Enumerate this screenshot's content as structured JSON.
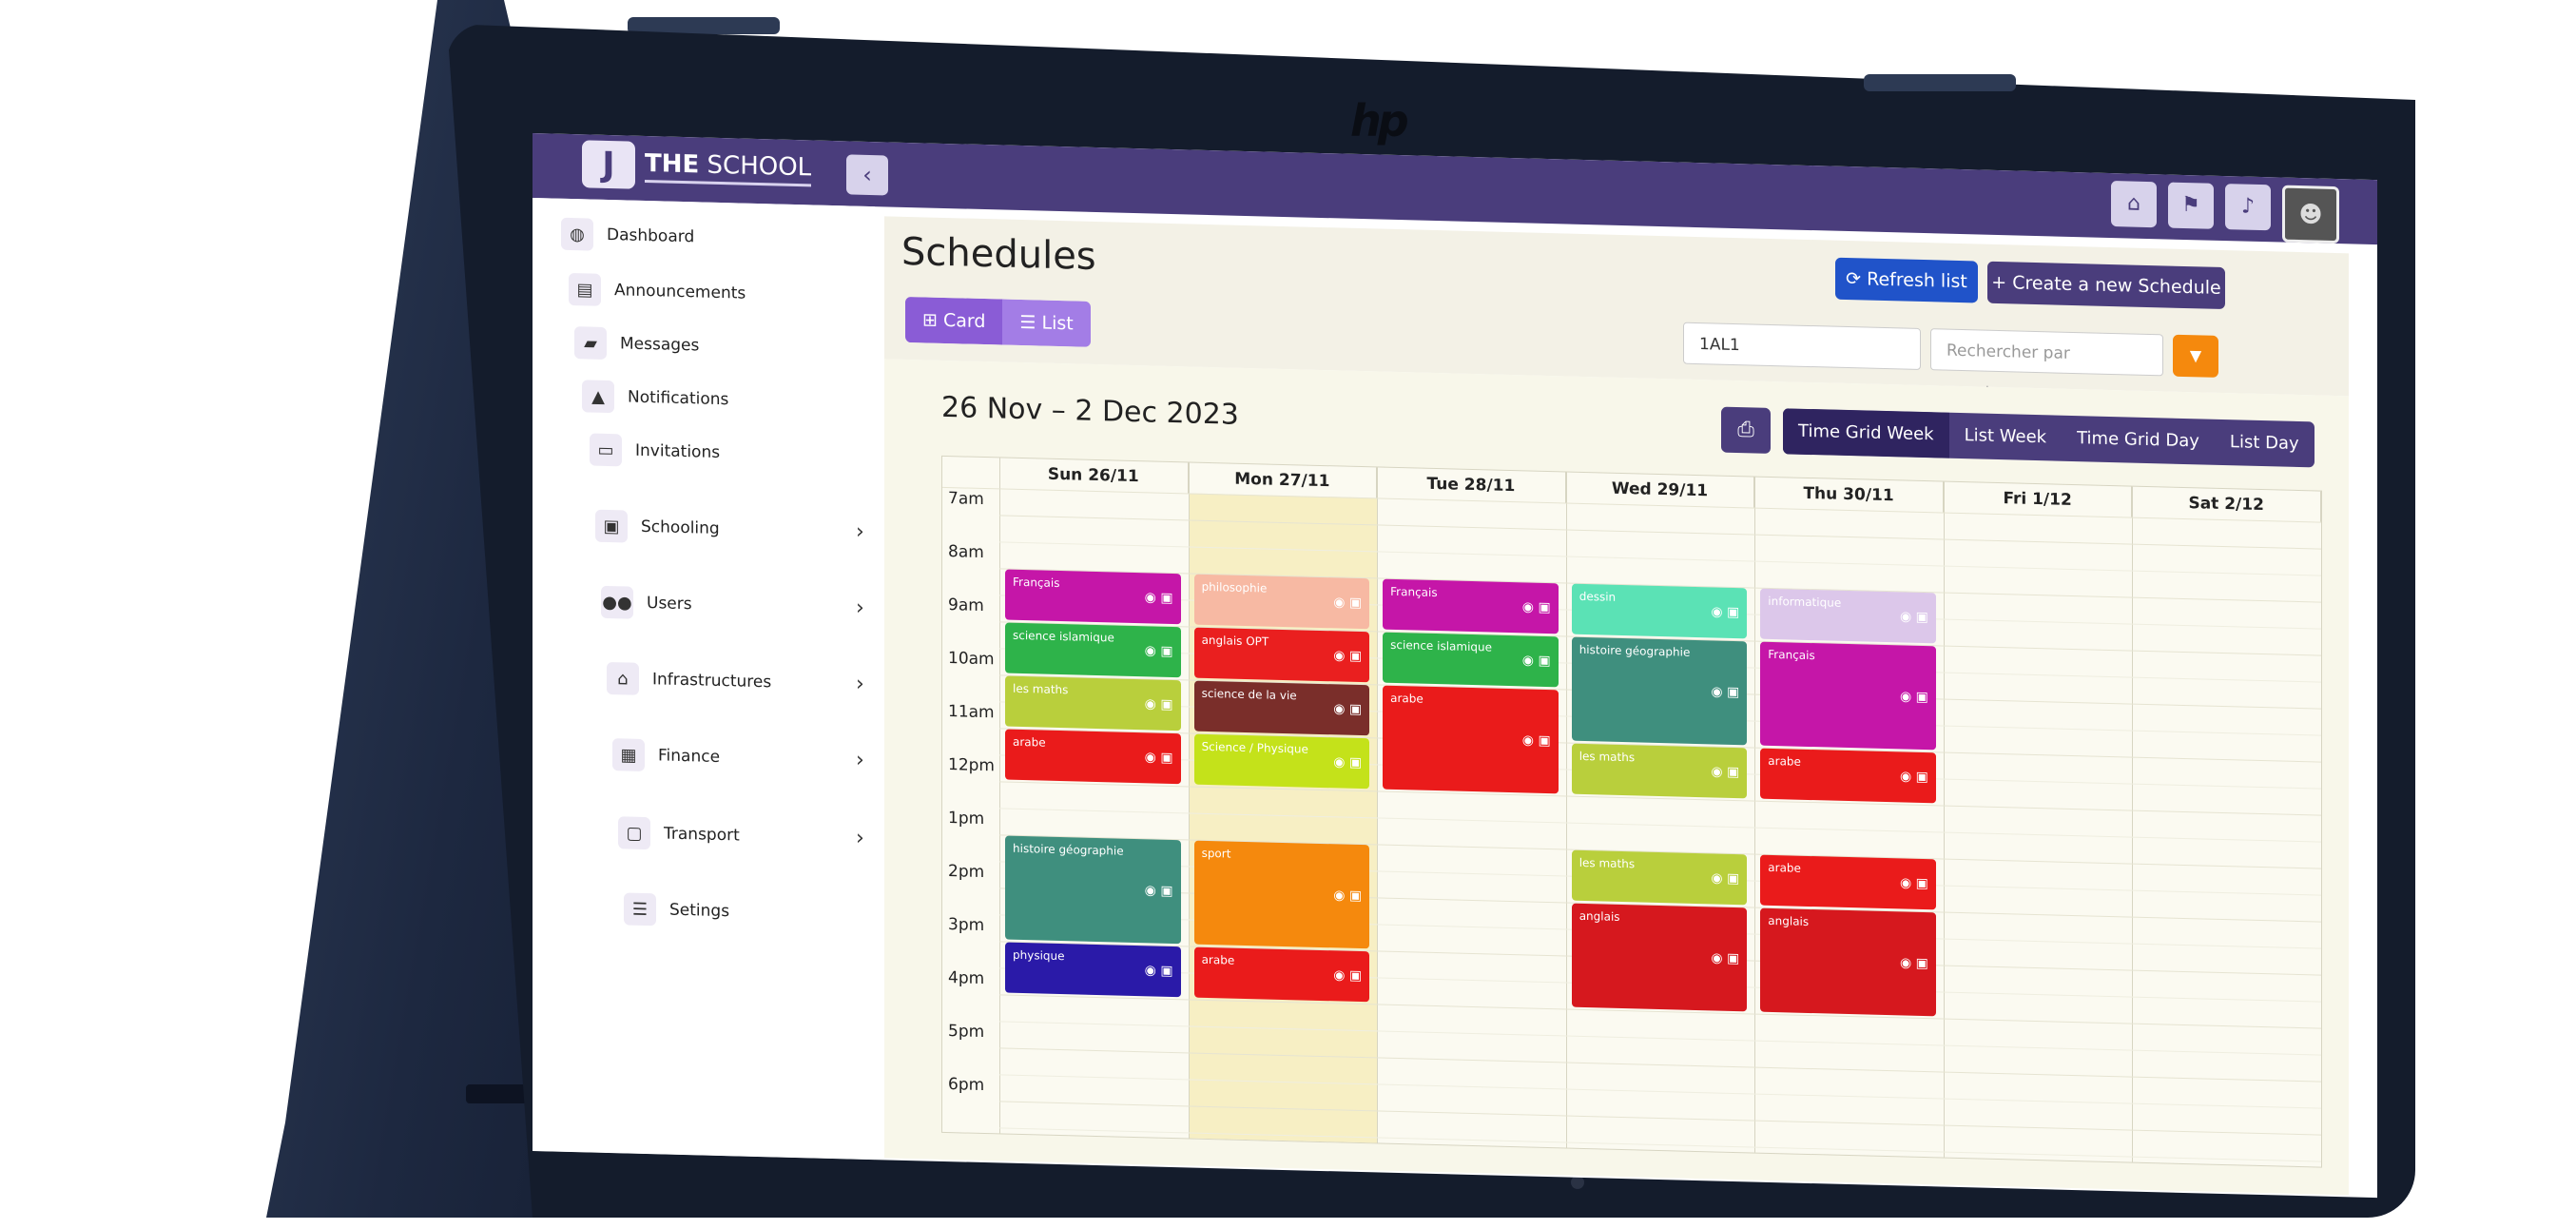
{
  "device": {
    "logo": "hp"
  },
  "app": {
    "brand_mark": "J",
    "brand_bold": "THE",
    "brand_rest": "SCHOOL",
    "collapse_icon": "‹",
    "top_icons": [
      "home-icon",
      "flag-icon",
      "bell-icon"
    ],
    "avatar": "☻"
  },
  "sidebar": {
    "items": [
      {
        "label": "Dashboard",
        "icon": "◍",
        "chev": ""
      },
      {
        "label": "Announcements",
        "icon": "▤",
        "chev": ""
      },
      {
        "label": "Messages",
        "icon": "▰",
        "chev": ""
      },
      {
        "label": "Notifications",
        "icon": "▲",
        "chev": ""
      },
      {
        "label": "Invitations",
        "icon": "▭",
        "chev": ""
      },
      {
        "label": "Schooling",
        "icon": "▣",
        "chev": "›"
      },
      {
        "label": "Users",
        "icon": "●●",
        "chev": "›"
      },
      {
        "label": "Infrastructures",
        "icon": "⌂",
        "chev": "›"
      },
      {
        "label": "Finance",
        "icon": "▦",
        "chev": "›"
      },
      {
        "label": "Transport",
        "icon": "▢",
        "chev": "›"
      },
      {
        "label": "Setings",
        "icon": "☰",
        "chev": ""
      }
    ]
  },
  "header": {
    "title": "Schedules",
    "refresh_label": "⟳ Refresh list",
    "create_label": "+ Create a new Schedule",
    "card_label": "⊞ Card",
    "list_label": "☰ List",
    "class_value": "1AL1",
    "teacher_placeholder": "Rechercher par enseignant",
    "filter_icon": "▼"
  },
  "calendar": {
    "date_range": "26 Nov – 2 Dec 2023",
    "print_icon": "⎙",
    "views": [
      "Time Grid Week",
      "List Week",
      "Time Grid Day",
      "List Day"
    ],
    "active_view": "Time Grid Week",
    "days": [
      "Sun 26/11",
      "Mon 27/11",
      "Tue 28/11",
      "Wed 29/11",
      "Thu 30/11",
      "Fri 1/12",
      "Sat 2/12"
    ],
    "today_index": 1,
    "times": [
      "7am",
      "8am",
      "9am",
      "10am",
      "11am",
      "12pm",
      "1pm",
      "2pm",
      "3pm",
      "4pm",
      "5pm",
      "6pm"
    ],
    "events": [
      {
        "day": 0,
        "start": 8.0,
        "end": 9.0,
        "title": "Français",
        "color": "#c516a8"
      },
      {
        "day": 0,
        "start": 9.0,
        "end": 10.0,
        "title": "science islamique",
        "color": "#2eb34a"
      },
      {
        "day": 0,
        "start": 10.0,
        "end": 11.0,
        "title": "les maths",
        "color": "#b9cf3c"
      },
      {
        "day": 0,
        "start": 11.0,
        "end": 12.0,
        "title": "arabe",
        "color": "#ea1b1b"
      },
      {
        "day": 0,
        "start": 13.0,
        "end": 15.0,
        "title": "histoire géographie",
        "color": "#3f8f7e"
      },
      {
        "day": 0,
        "start": 15.0,
        "end": 16.0,
        "title": "physique",
        "color": "#2a1aa8"
      },
      {
        "day": 1,
        "start": 8.0,
        "end": 9.0,
        "title": "philosophie",
        "color": "#f7b9a3"
      },
      {
        "day": 1,
        "start": 9.0,
        "end": 10.0,
        "title": "anglais OPT",
        "color": "#ea1f1f"
      },
      {
        "day": 1,
        "start": 10.0,
        "end": 11.0,
        "title": "science de la vie",
        "color": "#7a2e2a"
      },
      {
        "day": 1,
        "start": 11.0,
        "end": 12.0,
        "title": "Science / Physique",
        "color": "#c4e21a"
      },
      {
        "day": 1,
        "start": 13.0,
        "end": 15.0,
        "title": "sport",
        "color": "#f5890d"
      },
      {
        "day": 1,
        "start": 15.0,
        "end": 16.0,
        "title": "arabe",
        "color": "#ea1b1b"
      },
      {
        "day": 2,
        "start": 8.0,
        "end": 9.0,
        "title": "Français",
        "color": "#c516a8"
      },
      {
        "day": 2,
        "start": 9.0,
        "end": 10.0,
        "title": "science islamique",
        "color": "#2eb34a"
      },
      {
        "day": 2,
        "start": 10.0,
        "end": 12.0,
        "title": "arabe",
        "color": "#ea1b1b"
      },
      {
        "day": 3,
        "start": 8.0,
        "end": 9.0,
        "title": "dessin",
        "color": "#5be2b5"
      },
      {
        "day": 3,
        "start": 9.0,
        "end": 11.0,
        "title": "histoire géographie",
        "color": "#3f8f7e"
      },
      {
        "day": 3,
        "start": 11.0,
        "end": 12.0,
        "title": "les maths",
        "color": "#b9cf3c"
      },
      {
        "day": 3,
        "start": 13.0,
        "end": 14.0,
        "title": "les maths",
        "color": "#b9cf3c"
      },
      {
        "day": 3,
        "start": 14.0,
        "end": 16.0,
        "title": "anglais",
        "color": "#d6181e"
      },
      {
        "day": 4,
        "start": 8.0,
        "end": 9.0,
        "title": "informatique",
        "color": "#dcc7ea"
      },
      {
        "day": 4,
        "start": 9.0,
        "end": 11.0,
        "title": "Français",
        "color": "#c516a8"
      },
      {
        "day": 4,
        "start": 11.0,
        "end": 12.0,
        "title": "arabe",
        "color": "#ea1b1b"
      },
      {
        "day": 4,
        "start": 13.0,
        "end": 14.0,
        "title": "arabe",
        "color": "#ea1b1b"
      },
      {
        "day": 4,
        "start": 14.0,
        "end": 16.0,
        "title": "anglais",
        "color": "#d6181e"
      }
    ],
    "event_icons": "◉ ▣"
  },
  "colors": {
    "primary": "#4a3d7c",
    "refresh": "#2053c9",
    "seg_card": "#8a5cd6",
    "seg_list": "#a37de6",
    "filter": "#f5890d"
  }
}
